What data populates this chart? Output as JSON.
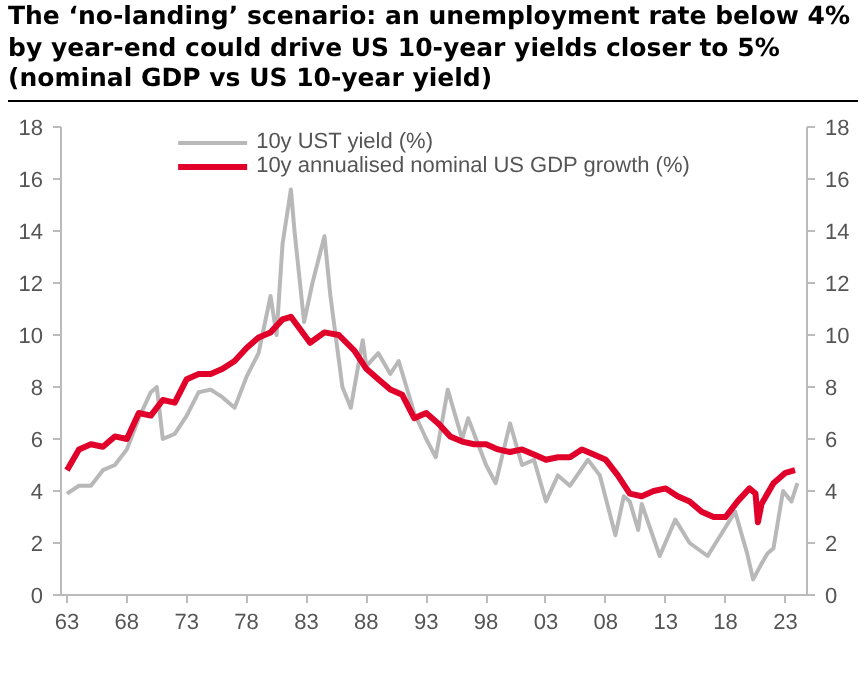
{
  "chart_data": {
    "type": "line",
    "title": "The ‘no-landing’ scenario: an unemployment rate below 4% by year-end could drive US 10-year yields closer to 5% (nominal GDP vs US 10-year yield)",
    "series": [
      {
        "name": "10y UST yield (%)",
        "color": "#b8b8b8",
        "x": [
          1963,
          1964,
          1965,
          1966,
          1967,
          1968,
          1969,
          1970,
          1970.5,
          1971,
          1972,
          1973,
          1974,
          1975,
          1976,
          1977,
          1978,
          1979,
          1980,
          1980.5,
          1981,
          1981.7,
          1982,
          1982.8,
          1983.5,
          1984.5,
          1985,
          1986,
          1986.7,
          1987.7,
          1988,
          1989,
          1990,
          1990.7,
          1992,
          1993,
          1993.8,
          1994.8,
          1996,
          1996.5,
          1998,
          1998.8,
          2000,
          2001,
          2002,
          2003,
          2004,
          2005,
          2006.5,
          2007.5,
          2008.8,
          2009.5,
          2010,
          2010.7,
          2011,
          2012.5,
          2013.8,
          2015,
          2016.5,
          2018.8,
          2019.8,
          2020.3,
          2021,
          2021.5,
          2022,
          2022.8,
          2023.5,
          2024
        ],
        "values": [
          3.9,
          4.2,
          4.2,
          4.8,
          5.0,
          5.6,
          6.8,
          7.8,
          8.0,
          6.0,
          6.2,
          6.9,
          7.8,
          7.9,
          7.6,
          7.2,
          8.4,
          9.3,
          11.5,
          10.0,
          13.5,
          15.6,
          14.0,
          10.5,
          12.0,
          13.8,
          11.5,
          8.0,
          7.2,
          9.8,
          8.8,
          9.3,
          8.5,
          9.0,
          7.0,
          6.0,
          5.3,
          7.9,
          6.0,
          6.8,
          5.0,
          4.3,
          6.6,
          5.0,
          5.2,
          3.6,
          4.6,
          4.2,
          5.2,
          4.6,
          2.3,
          3.8,
          3.6,
          2.5,
          3.5,
          1.5,
          2.9,
          2.0,
          1.5,
          3.2,
          1.6,
          0.6,
          1.2,
          1.6,
          1.8,
          4.0,
          3.6,
          4.3
        ]
      },
      {
        "name": "10y annualised nominal US GDP growth (%)",
        "color": "#e0002a",
        "x": [
          1963,
          1964,
          1965,
          1966,
          1967,
          1968,
          1969,
          1970,
          1971,
          1972,
          1973,
          1974,
          1975,
          1976,
          1977,
          1978,
          1979,
          1980,
          1981,
          1981.7,
          1982.5,
          1983.3,
          1984.5,
          1985.7,
          1987,
          1988,
          1989,
          1990,
          1991,
          1992,
          1993,
          1994,
          1995,
          1996,
          1997,
          1998,
          1999,
          2000,
          2001,
          2002,
          2003,
          2004,
          2005,
          2006,
          2007,
          2008,
          2009,
          2010,
          2011,
          2012,
          2013,
          2014,
          2015,
          2016,
          2017,
          2018,
          2019,
          2020,
          2020.5,
          2020.7,
          2021,
          2022,
          2023,
          2023.8
        ],
        "values": [
          4.8,
          5.6,
          5.8,
          5.7,
          6.1,
          6.0,
          7.0,
          6.9,
          7.5,
          7.4,
          8.3,
          8.5,
          8.5,
          8.7,
          9.0,
          9.5,
          9.9,
          10.1,
          10.6,
          10.7,
          10.2,
          9.7,
          10.1,
          10.0,
          9.4,
          8.7,
          8.3,
          7.9,
          7.7,
          6.8,
          7.0,
          6.6,
          6.1,
          5.9,
          5.8,
          5.8,
          5.6,
          5.5,
          5.6,
          5.4,
          5.2,
          5.3,
          5.3,
          5.6,
          5.4,
          5.2,
          4.6,
          3.9,
          3.8,
          4.0,
          4.1,
          3.8,
          3.6,
          3.2,
          3.0,
          3.0,
          3.6,
          4.1,
          3.9,
          2.8,
          3.5,
          4.3,
          4.7,
          4.8
        ]
      }
    ],
    "xlim": [
      1962.5,
      2024.8
    ],
    "xticks": [
      {
        "value": 1963,
        "label": "63"
      },
      {
        "value": 1968,
        "label": "68"
      },
      {
        "value": 1973,
        "label": "73"
      },
      {
        "value": 1978,
        "label": "78"
      },
      {
        "value": 1983,
        "label": "83"
      },
      {
        "value": 1988,
        "label": "88"
      },
      {
        "value": 1993,
        "label": "93"
      },
      {
        "value": 1998,
        "label": "98"
      },
      {
        "value": 2003,
        "label": "03"
      },
      {
        "value": 2008,
        "label": "08"
      },
      {
        "value": 2013,
        "label": "13"
      },
      {
        "value": 2018,
        "label": "18"
      },
      {
        "value": 2023,
        "label": "23"
      }
    ],
    "ylim": [
      0,
      18
    ],
    "yticks": [
      0,
      2,
      4,
      6,
      8,
      10,
      12,
      14,
      16,
      18
    ],
    "y2lim": [
      0,
      18
    ],
    "y2ticks": [
      0,
      2,
      4,
      6,
      8,
      10,
      12,
      14,
      16,
      18
    ],
    "grid": false,
    "legend": "top",
    "line_style": "solid",
    "marker": "none"
  }
}
